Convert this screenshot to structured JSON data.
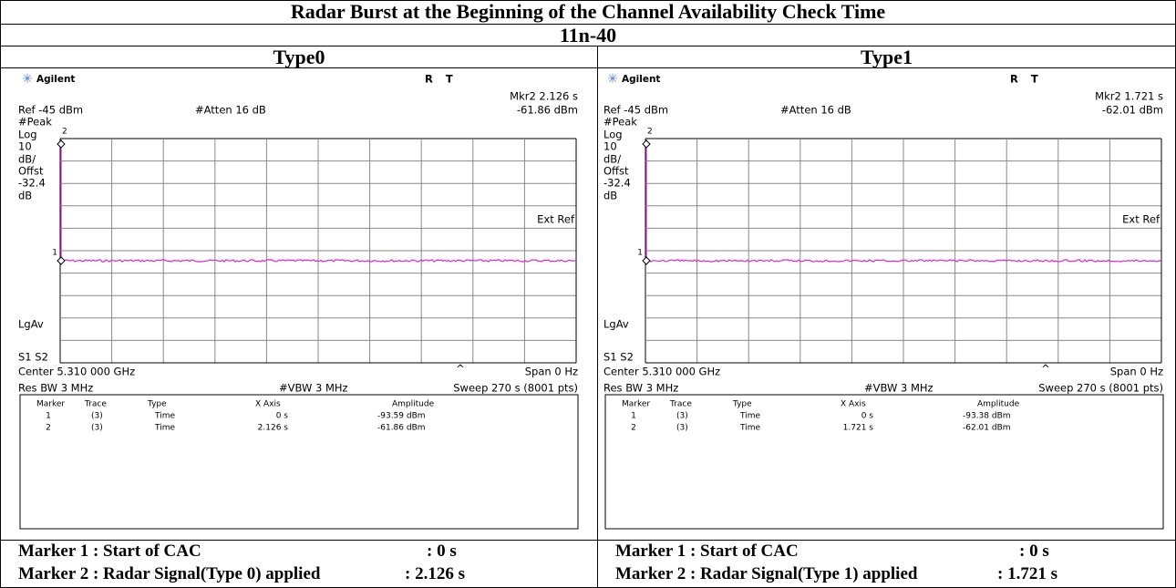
{
  "title": "Radar Burst at the Beginning of the Channel Availability Check Time",
  "mode": "11n-40",
  "panels": [
    {
      "heading": "Type0",
      "screen": {
        "brand": "Agilent",
        "status": "R T",
        "marker_readout": "Mkr2 2.126 s",
        "ref_level": "Ref -45 dBm",
        "attenuation": "#Atten 16 dB",
        "marker_amplitude": "-61.86 dBm",
        "side_labels": [
          "#Peak",
          "Log",
          "10",
          "dB/",
          "Offst",
          "-32.4",
          "dB",
          "LgAv",
          "S1 S2"
        ],
        "ext_ref": "Ext Ref",
        "marker_labels": [
          "2",
          "1"
        ],
        "center": "Center 5.310 000 GHz",
        "sweep_indicator": "^",
        "span": "Span 0 Hz",
        "res_bw": "Res BW 3 MHz",
        "vbw": "#VBW 3 MHz",
        "sweep": "Sweep 270 s (8001 pts)",
        "marker_table": {
          "columns": [
            "Marker",
            "Trace",
            "Type",
            "X Axis",
            "Amplitude"
          ],
          "rows": [
            [
              "1",
              "(3)",
              "Time",
              "0 s",
              "-93.59 dBm"
            ],
            [
              "2",
              "(3)",
              "Time",
              "2.126 s",
              "-61.86 dBm"
            ]
          ]
        }
      },
      "notes": [
        [
          "Marker 1 : Start of CAC",
          ": 0 s"
        ],
        [
          "Marker 2 : Radar Signal(Type 0) applied",
          ": 2.126 s"
        ]
      ]
    },
    {
      "heading": "Type1",
      "screen": {
        "brand": "Agilent",
        "status": "R T",
        "marker_readout": "Mkr2 1.721 s",
        "ref_level": "Ref -45 dBm",
        "attenuation": "#Atten 16 dB",
        "marker_amplitude": "-62.01 dBm",
        "side_labels": [
          "#Peak",
          "Log",
          "10",
          "dB/",
          "Offst",
          "-32.4",
          "dB",
          "LgAv",
          "S1 S2"
        ],
        "ext_ref": "Ext Ref",
        "marker_labels": [
          "2",
          "1"
        ],
        "center": "Center 5.310 000 GHz",
        "sweep_indicator": "^",
        "span": "Span 0 Hz",
        "res_bw": "Res BW 3 MHz",
        "vbw": "#VBW 3 MHz",
        "sweep": "Sweep 270 s (8001 pts)",
        "marker_table": {
          "columns": [
            "Marker",
            "Trace",
            "Type",
            "X Axis",
            "Amplitude"
          ],
          "rows": [
            [
              "1",
              "(3)",
              "Time",
              "0 s",
              "-93.38 dBm"
            ],
            [
              "2",
              "(3)",
              "Time",
              "1.721 s",
              "-62.01 dBm"
            ]
          ]
        }
      },
      "notes": [
        [
          "Marker 1 : Start of CAC",
          ": 0 s"
        ],
        [
          "Marker 2 : Radar Signal(Type 1) applied",
          ": 1.721 s"
        ]
      ]
    }
  ]
}
